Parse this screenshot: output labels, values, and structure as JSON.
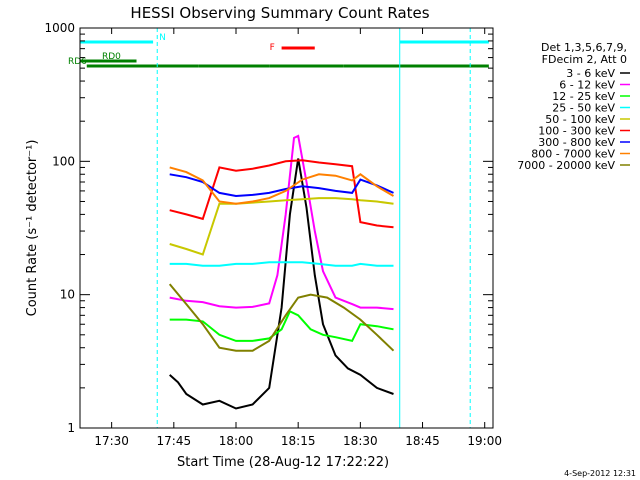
{
  "chart_data": {
    "type": "line",
    "title": "HESSI Observing Summary Count Rates",
    "xlabel": "Start Time (28-Aug-12 17:22:22)",
    "ylabel": "Count Rate (s⁻¹ detector⁻¹)",
    "y_scale": "log",
    "ylim": [
      1,
      1000
    ],
    "xlim": [
      "17:22:22",
      "19:02:00"
    ],
    "x_ticks": [
      "17:30",
      "17:45",
      "18:00",
      "18:15",
      "18:30",
      "18:45",
      "19:00"
    ],
    "y_ticks": [
      "1",
      "10",
      "100",
      "1000"
    ],
    "grid": false,
    "legend_position": "right",
    "legend_header": [
      "Det 1,3,5,6,7,9,",
      "FDecim 2, Att 0"
    ],
    "timestamp": "4-Sep-2012 12:31",
    "series": [
      {
        "name": "3 - 6 keV",
        "color": "#000000",
        "values": [
          [
            "17:44:00",
            2.5
          ],
          [
            "17:46:00",
            2.2
          ],
          [
            "17:48:00",
            1.8
          ],
          [
            "17:52:00",
            1.5
          ],
          [
            "17:56:00",
            1.6
          ],
          [
            "18:00:00",
            1.4
          ],
          [
            "18:04:00",
            1.5
          ],
          [
            "18:08:00",
            2.0
          ],
          [
            "18:11:00",
            8.0
          ],
          [
            "18:13:00",
            40
          ],
          [
            "18:15:00",
            105
          ],
          [
            "18:17:00",
            45
          ],
          [
            "18:19:00",
            14
          ],
          [
            "18:21:00",
            6
          ],
          [
            "18:24:00",
            3.5
          ],
          [
            "18:27:00",
            2.8
          ],
          [
            "18:30:00",
            2.5
          ],
          [
            "18:34:00",
            2.0
          ],
          [
            "18:38:00",
            1.8
          ]
        ]
      },
      {
        "name": "6 - 12 keV",
        "color": "#ff00ff",
        "values": [
          [
            "17:44:00",
            9.5
          ],
          [
            "17:48:00",
            9.0
          ],
          [
            "17:52:00",
            8.8
          ],
          [
            "17:56:00",
            8.2
          ],
          [
            "18:00:00",
            8.0
          ],
          [
            "18:04:00",
            8.1
          ],
          [
            "18:08:00",
            8.6
          ],
          [
            "18:10:00",
            14
          ],
          [
            "18:12:00",
            40
          ],
          [
            "18:14:00",
            150
          ],
          [
            "18:15:00",
            155
          ],
          [
            "18:17:00",
            70
          ],
          [
            "18:19:00",
            30
          ],
          [
            "18:21:00",
            15
          ],
          [
            "18:24:00",
            9.5
          ],
          [
            "18:28:00",
            8.5
          ],
          [
            "18:30:00",
            8.0
          ],
          [
            "18:34:00",
            8.0
          ],
          [
            "18:38:00",
            7.8
          ]
        ]
      },
      {
        "name": "12 - 25 keV",
        "color": "#00ff00",
        "values": [
          [
            "17:44:00",
            6.5
          ],
          [
            "17:48:00",
            6.5
          ],
          [
            "17:52:00",
            6.3
          ],
          [
            "17:56:00",
            5.0
          ],
          [
            "18:00:00",
            4.5
          ],
          [
            "18:04:00",
            4.5
          ],
          [
            "18:08:00",
            4.7
          ],
          [
            "18:11:00",
            5.5
          ],
          [
            "18:13:00",
            7.5
          ],
          [
            "18:15:00",
            7.0
          ],
          [
            "18:18:00",
            5.5
          ],
          [
            "18:21:00",
            5.0
          ],
          [
            "18:24:00",
            4.8
          ],
          [
            "18:28:00",
            4.5
          ],
          [
            "18:30:00",
            6.0
          ],
          [
            "18:34:00",
            5.8
          ],
          [
            "18:38:00",
            5.5
          ]
        ]
      },
      {
        "name": "25 - 50 keV",
        "color": "#00ffff",
        "values": [
          [
            "17:44:00",
            17
          ],
          [
            "17:48:00",
            17
          ],
          [
            "17:52:00",
            16.5
          ],
          [
            "17:56:00",
            16.5
          ],
          [
            "18:00:00",
            17
          ],
          [
            "18:04:00",
            17
          ],
          [
            "18:08:00",
            17.5
          ],
          [
            "18:12:00",
            17.5
          ],
          [
            "18:16:00",
            17.5
          ],
          [
            "18:20:00",
            17
          ],
          [
            "18:24:00",
            16.5
          ],
          [
            "18:28:00",
            16.5
          ],
          [
            "18:30:00",
            17
          ],
          [
            "18:34:00",
            16.5
          ],
          [
            "18:38:00",
            16.5
          ]
        ]
      },
      {
        "name": "50 - 100 keV",
        "color": "#c8c800",
        "values": [
          [
            "17:44:00",
            24
          ],
          [
            "17:48:00",
            22
          ],
          [
            "17:52:00",
            20
          ],
          [
            "17:56:00",
            48
          ],
          [
            "18:00:00",
            48
          ],
          [
            "18:04:00",
            49
          ],
          [
            "18:08:00",
            50
          ],
          [
            "18:12:00",
            51
          ],
          [
            "18:16:00",
            52
          ],
          [
            "18:20:00",
            53
          ],
          [
            "18:24:00",
            53
          ],
          [
            "18:28:00",
            52
          ],
          [
            "18:30:00",
            51
          ],
          [
            "18:34:00",
            50
          ],
          [
            "18:38:00",
            48
          ]
        ]
      },
      {
        "name": "100 - 300 keV",
        "color": "#ff0000",
        "values": [
          [
            "17:44:00",
            43
          ],
          [
            "17:48:00",
            40
          ],
          [
            "17:52:00",
            37
          ],
          [
            "17:56:00",
            90
          ],
          [
            "18:00:00",
            85
          ],
          [
            "18:04:00",
            88
          ],
          [
            "18:08:00",
            93
          ],
          [
            "18:12:00",
            100
          ],
          [
            "18:16:00",
            102
          ],
          [
            "18:20:00",
            98
          ],
          [
            "18:24:00",
            95
          ],
          [
            "18:28:00",
            92
          ],
          [
            "18:30:00",
            35
          ],
          [
            "18:34:00",
            33
          ],
          [
            "18:38:00",
            32
          ]
        ]
      },
      {
        "name": "300 - 800 keV",
        "color": "#0000ff",
        "values": [
          [
            "17:44:00",
            80
          ],
          [
            "17:48:00",
            76
          ],
          [
            "17:52:00",
            70
          ],
          [
            "17:56:00",
            58
          ],
          [
            "18:00:00",
            55
          ],
          [
            "18:04:00",
            56
          ],
          [
            "18:08:00",
            58
          ],
          [
            "18:12:00",
            62
          ],
          [
            "18:16:00",
            65
          ],
          [
            "18:20:00",
            63
          ],
          [
            "18:24:00",
            60
          ],
          [
            "18:28:00",
            58
          ],
          [
            "18:30:00",
            73
          ],
          [
            "18:34:00",
            66
          ],
          [
            "18:38:00",
            58
          ]
        ]
      },
      {
        "name": "800 - 7000 keV",
        "color": "#ff8000",
        "values": [
          [
            "17:44:00",
            90
          ],
          [
            "17:48:00",
            83
          ],
          [
            "17:52:00",
            72
          ],
          [
            "17:56:00",
            50
          ],
          [
            "18:00:00",
            48
          ],
          [
            "18:04:00",
            50
          ],
          [
            "18:08:00",
            53
          ],
          [
            "18:12:00",
            60
          ],
          [
            "18:16:00",
            73
          ],
          [
            "18:20:00",
            80
          ],
          [
            "18:24:00",
            78
          ],
          [
            "18:28:00",
            72
          ],
          [
            "18:30:00",
            80
          ],
          [
            "18:34:00",
            65
          ],
          [
            "18:38:00",
            55
          ]
        ]
      },
      {
        "name": "7000 - 20000 keV",
        "color": "#808000",
        "values": [
          [
            "17:44:00",
            12
          ],
          [
            "17:48:00",
            8.5
          ],
          [
            "17:52:00",
            6.0
          ],
          [
            "17:56:00",
            4.0
          ],
          [
            "18:00:00",
            3.8
          ],
          [
            "18:04:00",
            3.8
          ],
          [
            "18:08:00",
            4.5
          ],
          [
            "18:12:00",
            7.0
          ],
          [
            "18:15:00",
            9.5
          ],
          [
            "18:18:00",
            10
          ],
          [
            "18:22:00",
            9.5
          ],
          [
            "18:26:00",
            8.0
          ],
          [
            "18:30:00",
            6.5
          ],
          [
            "18:34:00",
            5.0
          ],
          [
            "18:38:00",
            3.8
          ]
        ]
      }
    ],
    "flags": [
      {
        "label": "N",
        "color": "#00ffff",
        "intervals": [
          [
            "17:22:22",
            "17:40:00"
          ],
          [
            "18:39:30",
            "19:01:00"
          ]
        ]
      },
      {
        "label": "F",
        "color": "#ff0000",
        "intervals": [
          [
            "18:11:00",
            "18:19:00"
          ]
        ]
      },
      {
        "label": "RD0",
        "color": "#008000",
        "intervals": [
          [
            "17:22:22",
            "17:36:00"
          ]
        ]
      },
      {
        "label": "RD6",
        "color": "#008000",
        "intervals": [
          [
            "17:24:00",
            "17:51:00"
          ],
          [
            "17:51:00",
            "18:08:00"
          ],
          [
            "18:08:00",
            "18:26:00"
          ],
          [
            "18:26:00",
            "19:01:00"
          ]
        ]
      }
    ],
    "vertical_lines": [
      {
        "x": "17:22:22",
        "style": "solid"
      },
      {
        "x": "17:41:00",
        "style": "dashed"
      },
      {
        "x": "18:39:30",
        "style": "solid"
      },
      {
        "x": "18:56:30",
        "style": "dashed"
      }
    ]
  }
}
